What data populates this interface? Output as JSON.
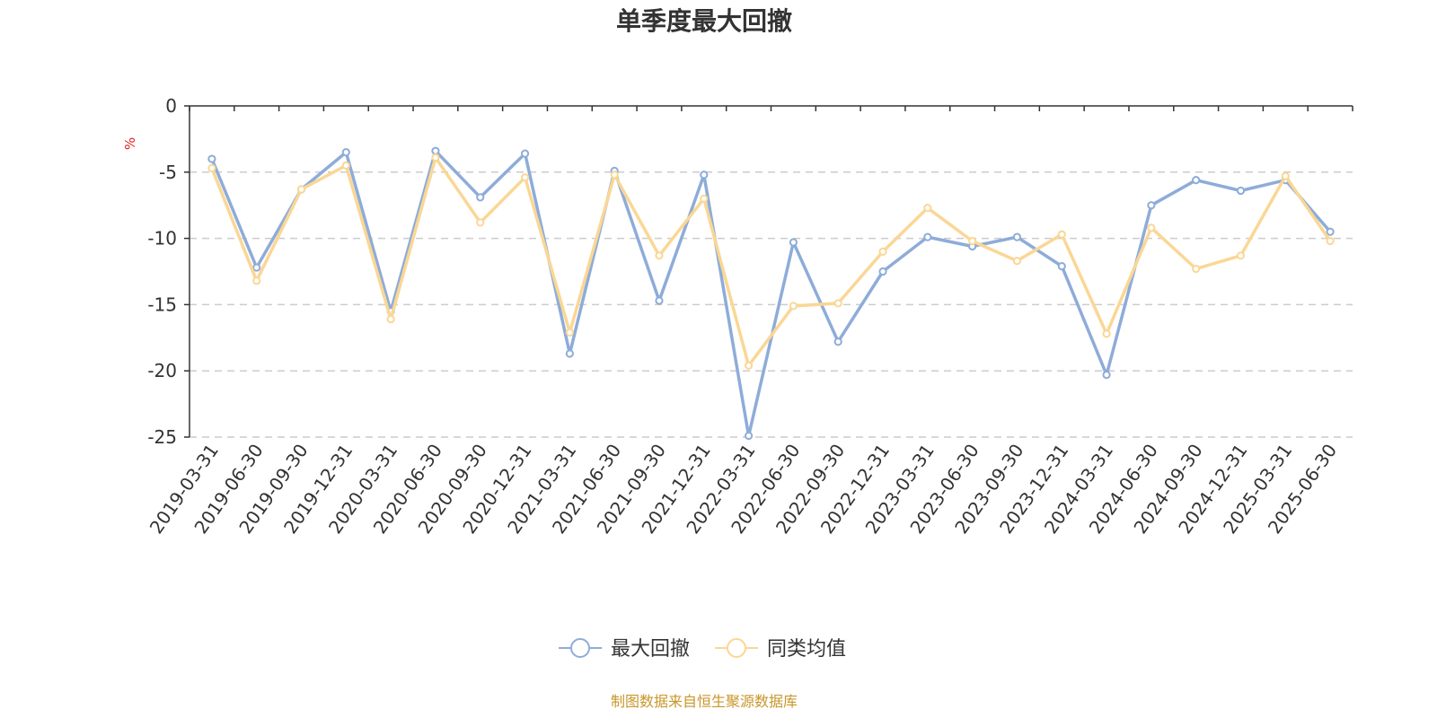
{
  "chart_data": {
    "type": "line",
    "title": "单季度最大回撤",
    "ylabel": "%",
    "ylim": [
      -25,
      0
    ],
    "yticks": [
      0,
      -5,
      -10,
      -15,
      -20,
      -25
    ],
    "grid": "horizontal dashed",
    "legend_position": "bottom",
    "x": [
      "2019-03-31",
      "2019-06-30",
      "2019-09-30",
      "2019-12-31",
      "2020-03-31",
      "2020-06-30",
      "2020-09-30",
      "2020-12-31",
      "2021-03-31",
      "2021-06-30",
      "2021-09-30",
      "2021-12-31",
      "2022-03-31",
      "2022-06-30",
      "2022-09-30",
      "2022-12-31",
      "2023-03-31",
      "2023-06-30",
      "2023-09-30",
      "2023-12-31",
      "2024-03-31",
      "2024-06-30",
      "2024-09-30",
      "2024-12-31",
      "2025-03-31",
      "2025-06-30"
    ],
    "series": [
      {
        "name": "最大回撤",
        "color": "#8eacd9",
        "values": [
          -4.0,
          -12.2,
          -6.3,
          -3.5,
          -15.5,
          -3.4,
          -6.9,
          -3.6,
          -18.7,
          -4.9,
          -14.7,
          -5.2,
          -24.9,
          -10.3,
          -17.8,
          -12.5,
          -9.9,
          -10.6,
          -9.9,
          -12.1,
          -20.3,
          -7.5,
          -5.6,
          -6.4,
          -5.6,
          -9.5
        ]
      },
      {
        "name": "同类均值",
        "color": "#fad795",
        "values": [
          -4.7,
          -13.2,
          -6.3,
          -4.5,
          -16.1,
          -3.9,
          -8.8,
          -5.4,
          -17.1,
          -5.2,
          -11.3,
          -7.0,
          -19.6,
          -15.1,
          -14.9,
          -11.0,
          -7.7,
          -10.2,
          -11.7,
          -9.7,
          -17.2,
          -9.2,
          -12.3,
          -11.3,
          -5.3,
          -10.2
        ]
      }
    ]
  },
  "source_note": "制图数据来自恒生聚源数据库"
}
